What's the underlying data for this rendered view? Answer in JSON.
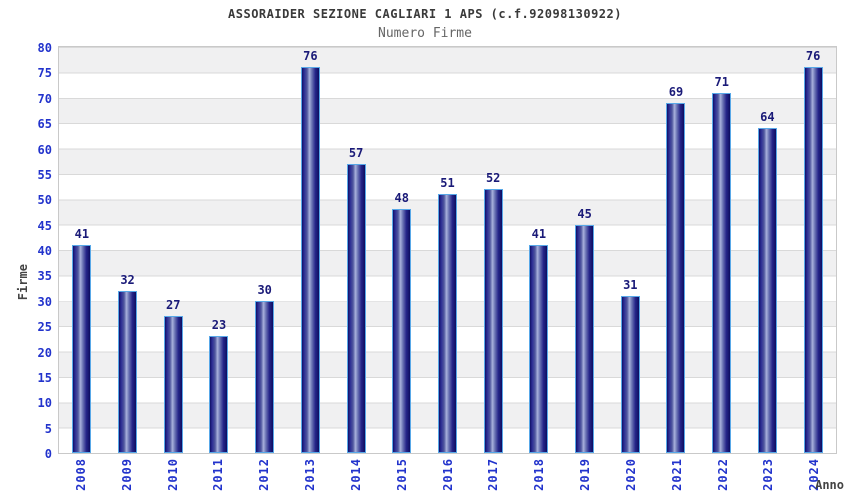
{
  "header": {
    "title": "ASSORAIDER SEZIONE CAGLIARI 1 APS (c.f.92098130922)",
    "subtitle": "Numero Firme"
  },
  "chart_data": {
    "type": "bar",
    "title": "ASSORAIDER SEZIONE CAGLIARI 1 APS (c.f.92098130922)",
    "subtitle": "Numero Firme",
    "categories": [
      "2008",
      "2009",
      "2010",
      "2011",
      "2012",
      "2013",
      "2014",
      "2015",
      "2016",
      "2017",
      "2018",
      "2019",
      "2020",
      "2021",
      "2022",
      "2023",
      "2024"
    ],
    "values": [
      41,
      32,
      27,
      23,
      30,
      76,
      57,
      48,
      51,
      52,
      41,
      45,
      31,
      69,
      71,
      64,
      76
    ],
    "xlabel": "Anno",
    "ylabel": "Firme",
    "ylim": [
      0,
      80
    ],
    "ytick_step": 5,
    "yticks": [
      0,
      5,
      10,
      15,
      20,
      25,
      30,
      35,
      40,
      45,
      50,
      55,
      60,
      65,
      70,
      75,
      80
    ],
    "grid": true,
    "legend_position": "none",
    "bar_value_labels": true
  },
  "colors": {
    "axis_tick_blue": "#2233cc",
    "value_label_navy": "#1a1a78",
    "bar_outline_lightblue": "#58a8e8",
    "bar_gradient_dark": "#0f0f66",
    "bar_gradient_light": "#a9b1dc",
    "band_gray": "#f0f0f1",
    "grid_line": "#d9d9d9",
    "plot_border": "#c9c9c9",
    "title_color": "#3a3a3a",
    "subtitle_color": "#666666",
    "axis_title_color": "#444444",
    "background": "#ffffff"
  }
}
